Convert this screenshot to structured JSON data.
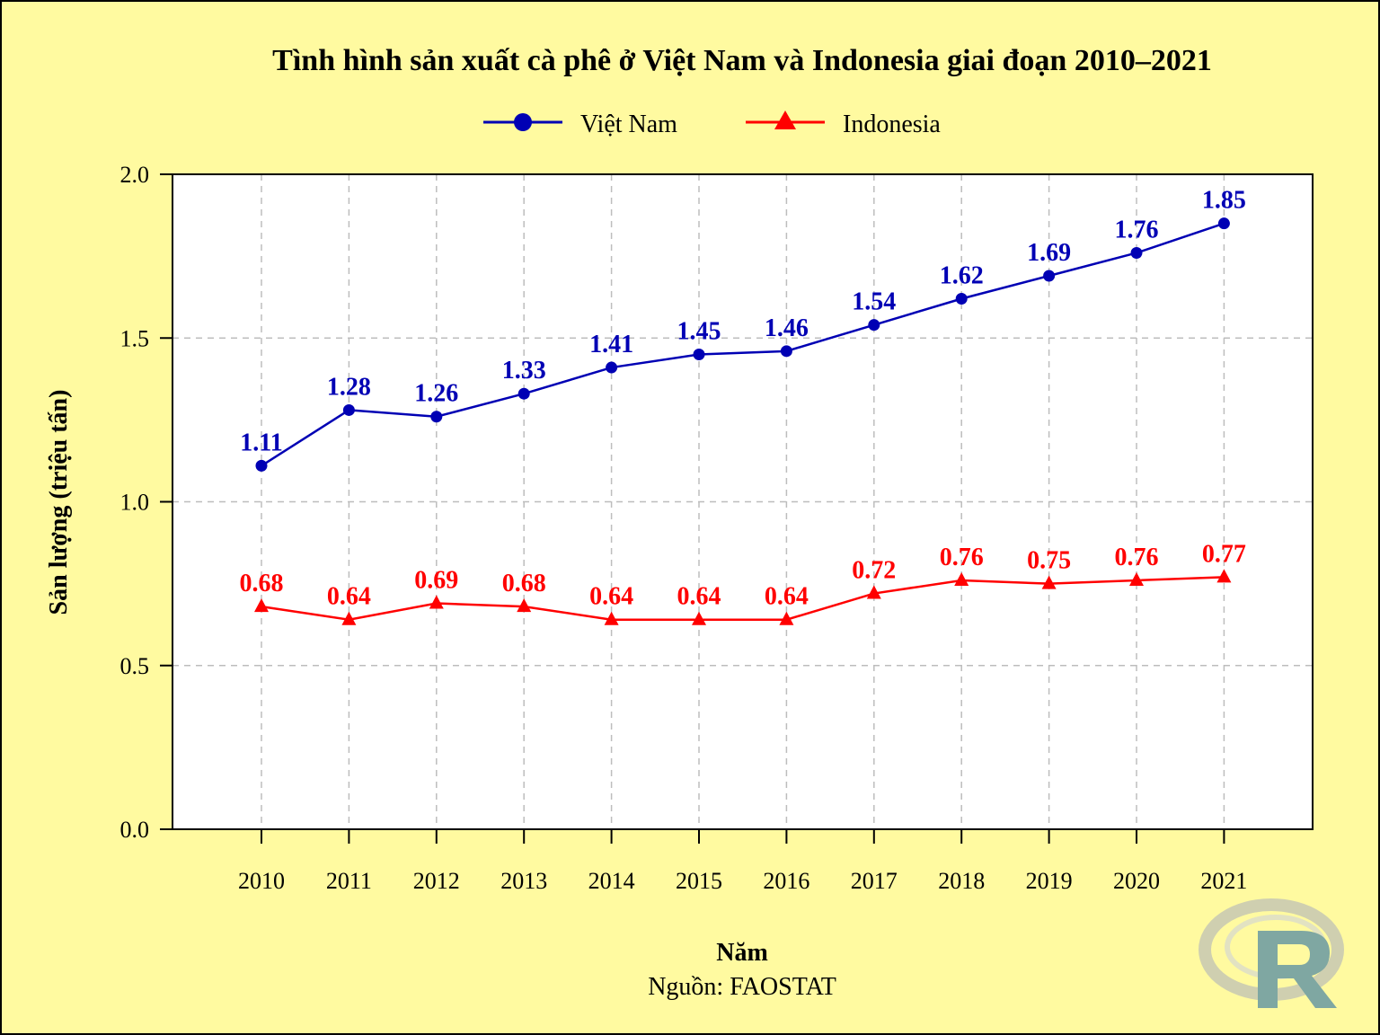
{
  "chart_data": {
    "type": "line",
    "title": "Tình hình sản xuất cà phê ở Việt Nam và Indonesia giai đoạn 2010–2021",
    "xlabel": "Năm",
    "ylabel": "Sản lượng (triệu tấn)",
    "source": "Nguồn: FAOSTAT",
    "categories": [
      "2010",
      "2011",
      "2012",
      "2013",
      "2014",
      "2015",
      "2016",
      "2017",
      "2018",
      "2019",
      "2020",
      "2021"
    ],
    "ylim": [
      0,
      2
    ],
    "yticks": [
      "0.0",
      "0.5",
      "1.0",
      "1.5",
      "2.0"
    ],
    "grid": true,
    "legend_position": "top",
    "series": [
      {
        "name": "Việt Nam",
        "color": "#0000b4",
        "marker": "circle",
        "values": [
          1.11,
          1.28,
          1.26,
          1.33,
          1.41,
          1.45,
          1.46,
          1.54,
          1.62,
          1.69,
          1.76,
          1.85
        ],
        "labels": [
          "1.11",
          "1.28",
          "1.26",
          "1.33",
          "1.41",
          "1.45",
          "1.46",
          "1.54",
          "1.62",
          "1.69",
          "1.76",
          "1.85"
        ]
      },
      {
        "name": "Indonesia",
        "color": "#ff0000",
        "marker": "triangle",
        "values": [
          0.68,
          0.64,
          0.69,
          0.68,
          0.64,
          0.64,
          0.64,
          0.72,
          0.76,
          0.75,
          0.76,
          0.77
        ],
        "labels": [
          "0.68",
          "0.64",
          "0.69",
          "0.68",
          "0.64",
          "0.64",
          "0.64",
          "0.72",
          "0.76",
          "0.75",
          "0.76",
          "0.77"
        ]
      }
    ]
  },
  "logo": {
    "name": "R",
    "ring_color": "#cfcfb0",
    "letter_color": "#7fa7a2"
  }
}
